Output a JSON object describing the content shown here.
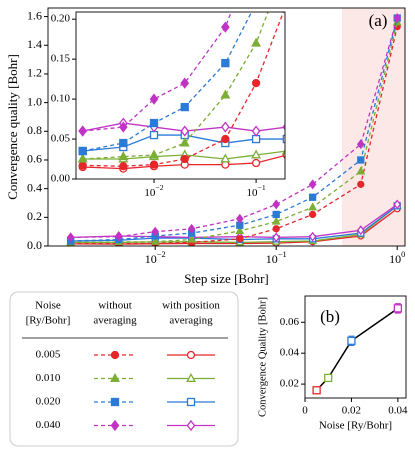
{
  "chart_data": [
    {
      "type": "line",
      "annotation": "(a)",
      "x_label": "Step size [Bohr]",
      "y_label": "Convergence quality [Bohr]",
      "log_x": true,
      "x": [
        0.002,
        0.005,
        0.01,
        0.02,
        0.05,
        0.1,
        0.2,
        0.5,
        1
      ],
      "xlim": [
        0.0013,
        1.16
      ],
      "xticks": [
        {
          "value": 0.01,
          "label": "10",
          "exponent": "−2"
        },
        {
          "value": 0.1,
          "label": "10",
          "exponent": "−1"
        },
        {
          "value": 1,
          "label": "10",
          "exponent": "0"
        }
      ],
      "ylim": [
        0,
        1.66
      ],
      "yticks": [
        {
          "value": 0,
          "label": "0.0"
        },
        0.2,
        0.4,
        0.6,
        0.8,
        {
          "value": 1,
          "label": "1.0"
        },
        1.2,
        1.4,
        1.6
      ],
      "shaded_from": 0.35,
      "series": [
        {
          "name": "0.005",
          "color": "#e5262b",
          "marker": "circle",
          "values": [
            0.017,
            0.016,
            0.018,
            0.025,
            0.05,
            0.12,
            0.22,
            0.43,
            1.53
          ],
          "averaged_values": [
            0.015,
            0.013,
            0.016,
            0.018,
            0.018,
            0.02,
            0.03,
            0.07,
            0.26
          ]
        },
        {
          "name": "0.010",
          "color": "#7aae35",
          "marker": "triangle",
          "values": [
            0.025,
            0.028,
            0.03,
            0.045,
            0.105,
            0.17,
            0.27,
            0.52,
            1.56
          ],
          "averaged_values": [
            0.025,
            0.025,
            0.028,
            0.03,
            0.025,
            0.03,
            0.035,
            0.08,
            0.28
          ]
        },
        {
          "name": "0.020",
          "color": "#2a7ad6",
          "marker": "square",
          "values": [
            0.035,
            0.045,
            0.07,
            0.09,
            0.145,
            0.22,
            0.34,
            0.6,
            1.59
          ],
          "averaged_values": [
            0.035,
            0.04,
            0.055,
            0.055,
            0.045,
            0.05,
            0.05,
            0.09,
            0.28
          ]
        },
        {
          "name": "0.040",
          "color": "#c133c4",
          "marker": "diamond",
          "values": [
            0.06,
            0.065,
            0.1,
            0.12,
            0.19,
            0.29,
            0.43,
            0.71,
            1.59
          ],
          "averaged_values": [
            0.06,
            0.07,
            0.065,
            0.06,
            0.065,
            0.06,
            0.065,
            0.11,
            0.29
          ]
        }
      ],
      "inset": {
        "xlim": [
          0.00172,
          0.192
        ],
        "xticks": [
          {
            "value": 0.01,
            "label": "10",
            "exponent": "−2"
          },
          {
            "value": 0.1,
            "label": "10",
            "exponent": "−1"
          }
        ],
        "ylim": [
          0,
          0.209
        ],
        "yticks": [
          {
            "value": 0,
            "label": "0.00"
          },
          {
            "value": 0.05,
            "label": "0.05"
          },
          {
            "value": 0.1,
            "label": "0.10"
          },
          {
            "value": 0.15,
            "label": "0.15"
          },
          {
            "value": 0.2,
            "label": "0.20"
          }
        ]
      },
      "legend": {
        "columns": [
          [
            "Noise",
            "[Ry/Bohr]"
          ],
          [
            "without",
            "averaging"
          ],
          [
            "with position",
            "averaging"
          ]
        ]
      }
    },
    {
      "type": "line",
      "annotation": "(b)",
      "x_label": "Noise [Ry/Bohr]",
      "y_label": "Convergence Quality [Bohr]",
      "x": [
        0.005,
        0.01,
        0.02,
        0.04
      ],
      "values": [
        0.016,
        0.024,
        0.048,
        0.069
      ],
      "errors": [
        0.0012,
        0.0012,
        0.003,
        0.003
      ],
      "colors": [
        "#e5262b",
        "#7aae35",
        "#2a7ad6",
        "#c133c4"
      ],
      "line_color": "#000000",
      "xlim": [
        0,
        0.0435
      ],
      "xticks": [
        0,
        0.02,
        0.04
      ],
      "ylim": [
        0.011,
        0.077
      ],
      "yticks": [
        0.02,
        0.04,
        0.06
      ]
    }
  ]
}
